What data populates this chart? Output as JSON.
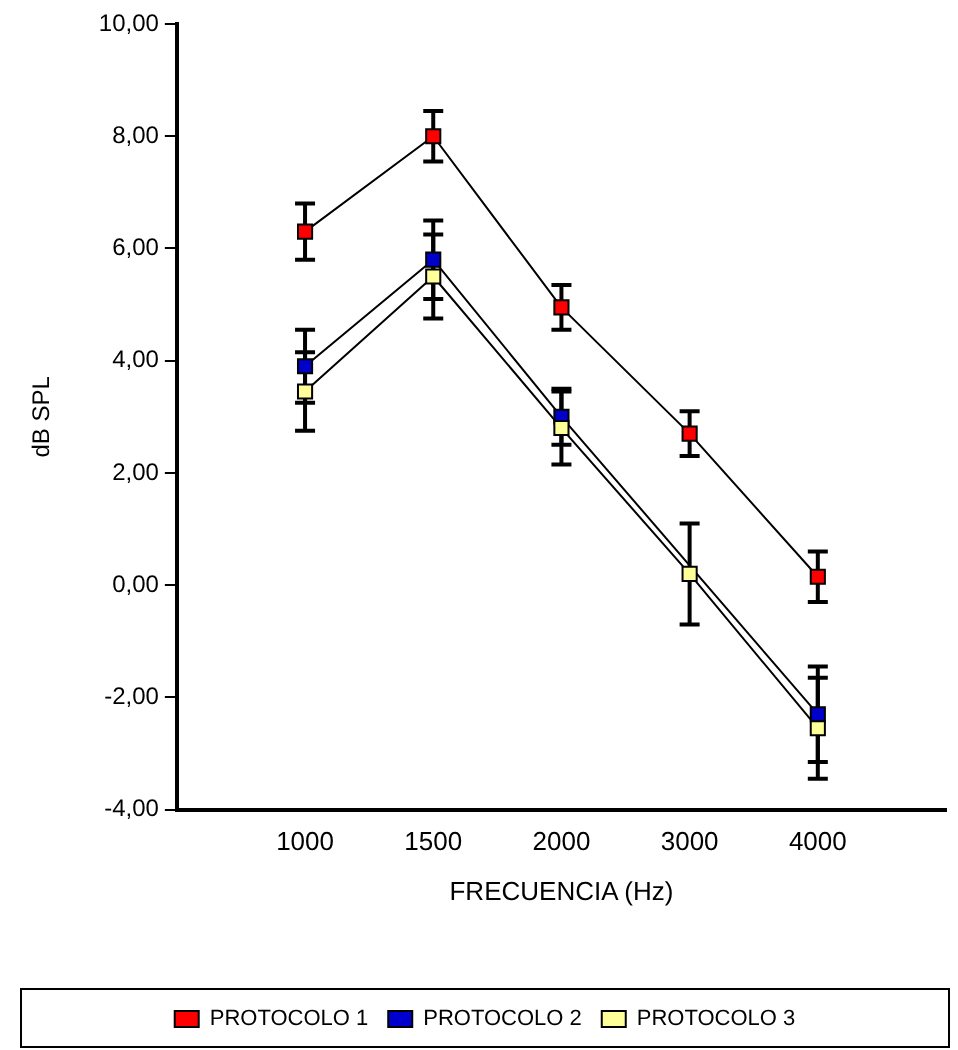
{
  "chart_data": {
    "type": "line",
    "xlabel": "FRECUENCIA (Hz)",
    "ylabel": "dB SPL",
    "categories": [
      "1000",
      "1500",
      "2000",
      "3000",
      "4000"
    ],
    "ylim": [
      -4,
      10
    ],
    "yticks": [
      {
        "value": -4,
        "label": "-4,00"
      },
      {
        "value": -2,
        "label": "-2,00"
      },
      {
        "value": 0,
        "label": "0,00"
      },
      {
        "value": 2,
        "label": "2,00"
      },
      {
        "value": 4,
        "label": "4,00"
      },
      {
        "value": 6,
        "label": "6,00"
      },
      {
        "value": 8,
        "label": "8,00"
      },
      {
        "value": 10,
        "label": "10,00"
      }
    ],
    "grid": false,
    "legend": "bottom",
    "marker": "square",
    "line_style": "solid",
    "series": [
      {
        "name": "PROTOCOLO 1",
        "color": "#ff0000",
        "values": [
          6.3,
          8.0,
          4.95,
          2.7,
          0.15
        ],
        "errors": [
          0.5,
          0.45,
          0.4,
          0.4,
          0.45
        ]
      },
      {
        "name": "PROTOCOLO 2",
        "color": "#0000cc",
        "values": [
          3.9,
          5.8,
          3.0,
          null,
          -2.3
        ],
        "errors": [
          0.65,
          0.7,
          0.5,
          null,
          0.85
        ]
      },
      {
        "name": "PROTOCOLO 3",
        "color": "#ffff99",
        "values": [
          3.45,
          5.5,
          2.8,
          0.2,
          -2.55
        ],
        "errors": [
          0.7,
          0.75,
          0.65,
          0.9,
          0.9
        ]
      }
    ]
  }
}
